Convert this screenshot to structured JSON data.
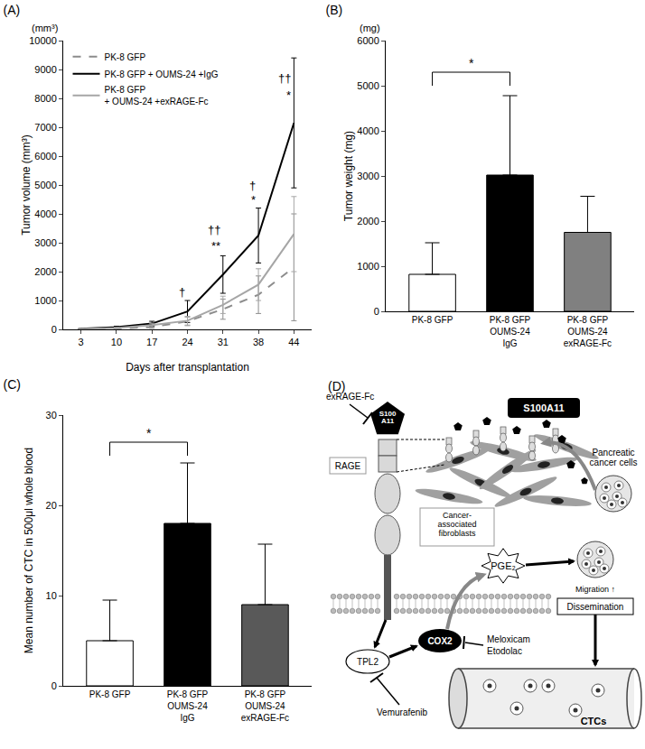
{
  "chart_data": [
    {
      "type": "line",
      "title": "(A)",
      "y_unit_label": "(mm³)",
      "x_label": "Days after transplantation",
      "y_label": "Tumor volume (mm³)",
      "categories": [
        "3",
        "10",
        "17",
        "24",
        "31",
        "38",
        "44"
      ],
      "ylim": [
        0,
        10000
      ],
      "yticks": [
        0,
        1000,
        2000,
        3000,
        4000,
        5000,
        6000,
        7000,
        8000,
        9000,
        10000
      ],
      "legend": "upper left",
      "series": [
        {
          "name": "PK-8 GFP",
          "color": "#8c8c8c",
          "line_style": "dash",
          "values": [
            10,
            30,
            80,
            280,
            700,
            1200,
            2150
          ],
          "errors": [
            5,
            15,
            40,
            150,
            350,
            650,
            1850
          ]
        },
        {
          "name": "PK-8 GFP + OUMS-24 +IgG",
          "color": "#000000",
          "line_style": "solid",
          "values": [
            20,
            80,
            200,
            620,
            1900,
            3250,
            7150
          ],
          "errors": [
            10,
            30,
            80,
            380,
            650,
            950,
            2250
          ]
        },
        {
          "name": "PK-8 GFP\n+ OUMS-24 +exRAGE-Fc",
          "color": "#a6a6a6",
          "line_style": "solid",
          "values": [
            15,
            50,
            150,
            300,
            850,
            1550,
            3300
          ],
          "errors": [
            8,
            20,
            60,
            150,
            300,
            550,
            1300
          ]
        }
      ],
      "annotations": [
        {
          "x": 3,
          "y": 1300,
          "text": "†"
        },
        {
          "x": 4,
          "y": 3450,
          "text": "††"
        },
        {
          "x": 4,
          "y": 2900,
          "text": "**"
        },
        {
          "x": 5,
          "y": 5000,
          "text": "†"
        },
        {
          "x": 5,
          "y": 4500,
          "text": "*"
        },
        {
          "x": 6,
          "y": 8700,
          "text": "††"
        },
        {
          "x": 6,
          "y": 8100,
          "text": "*"
        }
      ]
    },
    {
      "type": "bar",
      "title": "(B)",
      "y_unit_label": "(mg)",
      "y_label": "Tumor weight (mg)",
      "categories": [
        "PK-8 GFP",
        "PK-8 GFP\nOUMS-24\nIgG",
        "PK-8 GFP\nOUMS-24\nexRAGE-Fc"
      ],
      "values": [
        820,
        3020,
        1750
      ],
      "errors": [
        700,
        1760,
        800
      ],
      "colors": [
        "#ffffff",
        "#000000",
        "#808080"
      ],
      "ylim": [
        0,
        6000
      ],
      "yticks": [
        0,
        1000,
        2000,
        3000,
        4000,
        5000,
        6000
      ],
      "brackets": [
        {
          "from": 0,
          "to": 1,
          "y": 5300,
          "text": "*"
        }
      ]
    },
    {
      "type": "bar",
      "title": "(C)",
      "y_label": "Mean number of CTC in 500μl whole blood",
      "categories": [
        "PK-8 GFP",
        "PK-8 GFP\nOUMS-24\nIgG",
        "PK-8 GFP\nOUMS-24\nexRAGE-Fc"
      ],
      "values": [
        5,
        18,
        9
      ],
      "errors": [
        4.5,
        6.7,
        6.7
      ],
      "colors": [
        "#ffffff",
        "#000000",
        "#595959"
      ],
      "ylim": [
        0,
        30
      ],
      "yticks": [
        0,
        10,
        20,
        30
      ],
      "brackets": [
        {
          "from": 0,
          "to": 1,
          "y": 27,
          "text": "*"
        }
      ]
    }
  ],
  "diagram": {
    "title": "(D)",
    "labels": {
      "exrage": "exRAGE-Fc",
      "s100_small": "S100\nA11",
      "s100_box": "S100A11",
      "cancer_cells": "Pancreatic\ncancer cells",
      "rage": "RAGE",
      "caf": "Cancer-\nassociated\nfibroblasts",
      "pge2": "PGE₂",
      "migration": "Migration ↑",
      "dissemination": "Dissemination",
      "tpl2": "TPL2",
      "cox2": "COX2",
      "meloxicam": "Meloxicam",
      "etodolac": "Etodolac",
      "vemurafenib": "Vemurafenib",
      "ctcs": "CTCs"
    }
  }
}
